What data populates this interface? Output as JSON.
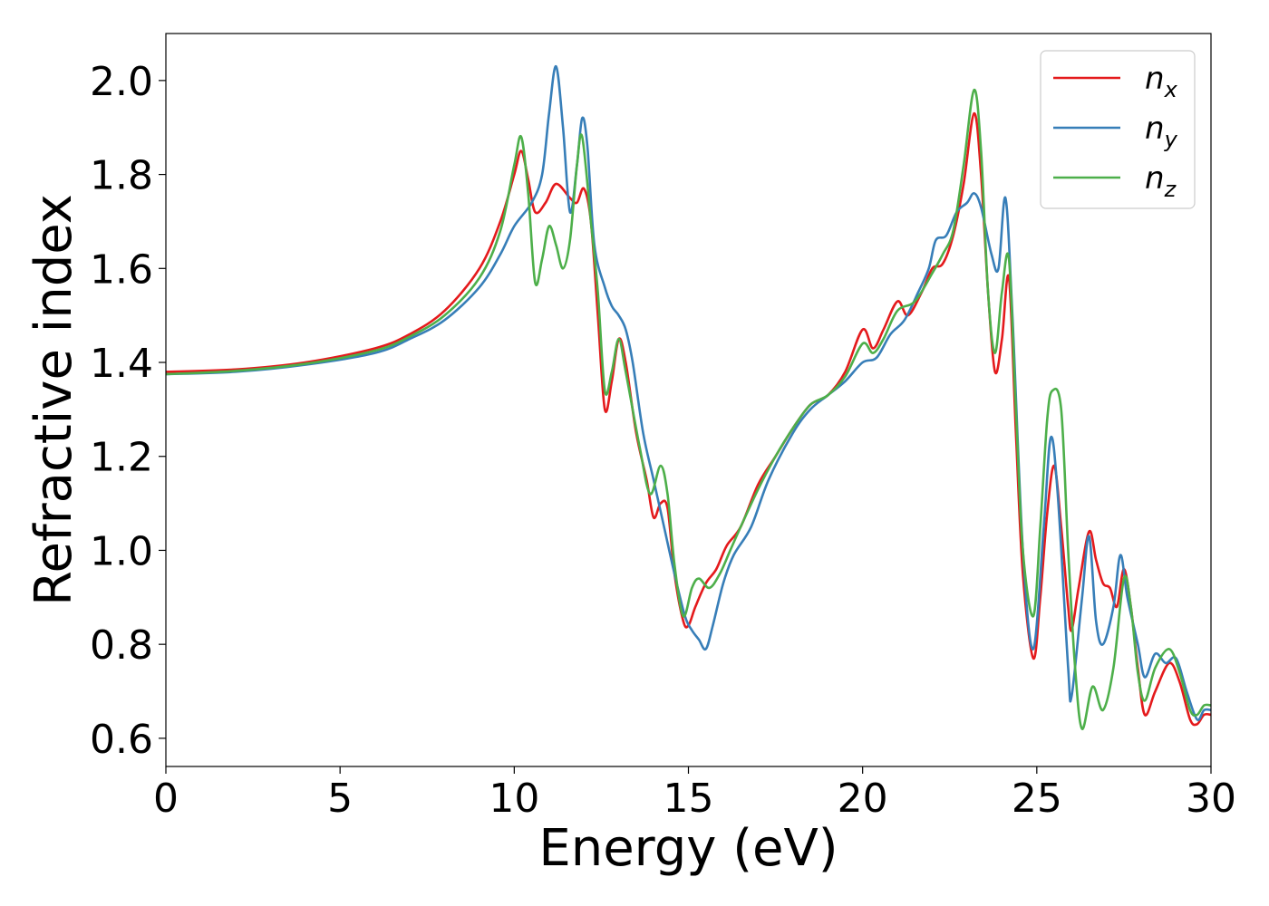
{
  "chart_data": {
    "type": "line",
    "title": "",
    "xlabel": "Energy (eV)",
    "ylabel": "Refractive index",
    "xlim": [
      0,
      30
    ],
    "ylim": [
      0.54,
      2.1
    ],
    "xticks": [
      0,
      5,
      10,
      15,
      20,
      25,
      30
    ],
    "xtick_labels": [
      "0",
      "5",
      "10",
      "15",
      "20",
      "25",
      "30"
    ],
    "yticks": [
      0.6,
      0.8,
      1.0,
      1.2,
      1.4,
      1.6,
      1.8,
      2.0
    ],
    "ytick_labels": [
      "0.6",
      "0.8",
      "1.0",
      "1.2",
      "1.4",
      "1.6",
      "1.8",
      "2.0"
    ],
    "grid": false,
    "legend_position": "top-right",
    "series": [
      {
        "name": "n_x",
        "label_main": "n",
        "label_sub": "x",
        "color": "#e41a1c",
        "points": [
          [
            0,
            1.38
          ],
          [
            2,
            1.385
          ],
          [
            4,
            1.4
          ],
          [
            6,
            1.43
          ],
          [
            7,
            1.46
          ],
          [
            8,
            1.51
          ],
          [
            9,
            1.6
          ],
          [
            9.6,
            1.7
          ],
          [
            10,
            1.8
          ],
          [
            10.2,
            1.85
          ],
          [
            10.4,
            1.79
          ],
          [
            10.6,
            1.72
          ],
          [
            10.9,
            1.74
          ],
          [
            11.2,
            1.78
          ],
          [
            11.6,
            1.75
          ],
          [
            11.8,
            1.74
          ],
          [
            12.0,
            1.77
          ],
          [
            12.2,
            1.7
          ],
          [
            12.4,
            1.5
          ],
          [
            12.6,
            1.3
          ],
          [
            12.8,
            1.36
          ],
          [
            13.0,
            1.45
          ],
          [
            13.2,
            1.4
          ],
          [
            13.5,
            1.25
          ],
          [
            13.8,
            1.15
          ],
          [
            14.0,
            1.07
          ],
          [
            14.2,
            1.1
          ],
          [
            14.4,
            1.09
          ],
          [
            14.6,
            0.95
          ],
          [
            14.85,
            0.85
          ],
          [
            15.0,
            0.84
          ],
          [
            15.2,
            0.88
          ],
          [
            15.5,
            0.93
          ],
          [
            15.8,
            0.96
          ],
          [
            16.1,
            1.01
          ],
          [
            16.5,
            1.05
          ],
          [
            17.0,
            1.14
          ],
          [
            17.5,
            1.2
          ],
          [
            18.0,
            1.26
          ],
          [
            18.5,
            1.31
          ],
          [
            19.0,
            1.33
          ],
          [
            19.5,
            1.38
          ],
          [
            20.0,
            1.47
          ],
          [
            20.3,
            1.43
          ],
          [
            20.6,
            1.47
          ],
          [
            21.0,
            1.53
          ],
          [
            21.3,
            1.5
          ],
          [
            21.7,
            1.55
          ],
          [
            22.0,
            1.6
          ],
          [
            22.3,
            1.61
          ],
          [
            22.6,
            1.67
          ],
          [
            22.9,
            1.78
          ],
          [
            23.2,
            1.93
          ],
          [
            23.4,
            1.8
          ],
          [
            23.6,
            1.55
          ],
          [
            23.8,
            1.38
          ],
          [
            24.0,
            1.45
          ],
          [
            24.2,
            1.58
          ],
          [
            24.4,
            1.25
          ],
          [
            24.6,
            0.95
          ],
          [
            24.9,
            0.77
          ],
          [
            25.1,
            0.9
          ],
          [
            25.3,
            1.08
          ],
          [
            25.5,
            1.18
          ],
          [
            25.7,
            1.05
          ],
          [
            25.9,
            0.88
          ],
          [
            26.0,
            0.83
          ],
          [
            26.2,
            0.92
          ],
          [
            26.5,
            1.04
          ],
          [
            26.7,
            0.98
          ],
          [
            26.9,
            0.93
          ],
          [
            27.1,
            0.92
          ],
          [
            27.3,
            0.88
          ],
          [
            27.5,
            0.96
          ],
          [
            27.7,
            0.88
          ],
          [
            27.9,
            0.75
          ],
          [
            28.1,
            0.65
          ],
          [
            28.4,
            0.7
          ],
          [
            28.8,
            0.76
          ],
          [
            29.1,
            0.72
          ],
          [
            29.4,
            0.64
          ],
          [
            29.6,
            0.63
          ],
          [
            29.8,
            0.65
          ],
          [
            30.0,
            0.65
          ]
        ]
      },
      {
        "name": "n_y",
        "label_main": "n",
        "label_sub": "y",
        "color": "#377eb8",
        "points": [
          [
            0,
            1.375
          ],
          [
            2,
            1.38
          ],
          [
            4,
            1.395
          ],
          [
            6,
            1.42
          ],
          [
            7,
            1.45
          ],
          [
            8,
            1.49
          ],
          [
            9,
            1.56
          ],
          [
            9.6,
            1.63
          ],
          [
            10,
            1.69
          ],
          [
            10.5,
            1.74
          ],
          [
            10.8,
            1.8
          ],
          [
            11.0,
            1.93
          ],
          [
            11.2,
            2.03
          ],
          [
            11.4,
            1.9
          ],
          [
            11.6,
            1.72
          ],
          [
            11.8,
            1.82
          ],
          [
            11.95,
            1.92
          ],
          [
            12.1,
            1.86
          ],
          [
            12.3,
            1.65
          ],
          [
            12.6,
            1.56
          ],
          [
            12.8,
            1.52
          ],
          [
            13.0,
            1.5
          ],
          [
            13.2,
            1.47
          ],
          [
            13.4,
            1.4
          ],
          [
            13.7,
            1.25
          ],
          [
            14.0,
            1.15
          ],
          [
            14.3,
            1.05
          ],
          [
            14.6,
            0.95
          ],
          [
            14.9,
            0.86
          ],
          [
            15.1,
            0.83
          ],
          [
            15.3,
            0.81
          ],
          [
            15.5,
            0.79
          ],
          [
            15.7,
            0.84
          ],
          [
            16.0,
            0.93
          ],
          [
            16.3,
            0.99
          ],
          [
            16.8,
            1.05
          ],
          [
            17.3,
            1.15
          ],
          [
            18.0,
            1.25
          ],
          [
            18.5,
            1.3
          ],
          [
            19.0,
            1.33
          ],
          [
            19.5,
            1.36
          ],
          [
            20.0,
            1.4
          ],
          [
            20.4,
            1.41
          ],
          [
            20.8,
            1.46
          ],
          [
            21.2,
            1.49
          ],
          [
            21.6,
            1.55
          ],
          [
            21.9,
            1.6
          ],
          [
            22.1,
            1.66
          ],
          [
            22.4,
            1.67
          ],
          [
            22.7,
            1.72
          ],
          [
            23.0,
            1.74
          ],
          [
            23.2,
            1.76
          ],
          [
            23.4,
            1.73
          ],
          [
            23.7,
            1.63
          ],
          [
            23.9,
            1.6
          ],
          [
            24.1,
            1.75
          ],
          [
            24.3,
            1.5
          ],
          [
            24.6,
            1.0
          ],
          [
            24.9,
            0.79
          ],
          [
            25.2,
            1.05
          ],
          [
            25.4,
            1.24
          ],
          [
            25.6,
            1.12
          ],
          [
            25.9,
            0.75
          ],
          [
            26.0,
            0.69
          ],
          [
            26.3,
            0.9
          ],
          [
            26.5,
            1.03
          ],
          [
            26.7,
            0.85
          ],
          [
            26.9,
            0.8
          ],
          [
            27.2,
            0.88
          ],
          [
            27.4,
            0.99
          ],
          [
            27.6,
            0.9
          ],
          [
            27.9,
            0.8
          ],
          [
            28.1,
            0.73
          ],
          [
            28.4,
            0.78
          ],
          [
            28.7,
            0.76
          ],
          [
            29.0,
            0.77
          ],
          [
            29.3,
            0.7
          ],
          [
            29.6,
            0.64
          ],
          [
            29.8,
            0.66
          ],
          [
            30.0,
            0.66
          ]
        ]
      },
      {
        "name": "n_z",
        "label_main": "n",
        "label_sub": "z",
        "color": "#4daf4a",
        "points": [
          [
            0,
            1.375
          ],
          [
            2,
            1.382
          ],
          [
            4,
            1.397
          ],
          [
            6,
            1.425
          ],
          [
            7,
            1.455
          ],
          [
            8,
            1.5
          ],
          [
            9,
            1.58
          ],
          [
            9.6,
            1.68
          ],
          [
            10,
            1.82
          ],
          [
            10.2,
            1.88
          ],
          [
            10.4,
            1.76
          ],
          [
            10.6,
            1.57
          ],
          [
            10.8,
            1.62
          ],
          [
            11.0,
            1.69
          ],
          [
            11.2,
            1.65
          ],
          [
            11.4,
            1.6
          ],
          [
            11.6,
            1.66
          ],
          [
            11.8,
            1.82
          ],
          [
            11.95,
            1.88
          ],
          [
            12.2,
            1.7
          ],
          [
            12.4,
            1.55
          ],
          [
            12.6,
            1.34
          ],
          [
            12.8,
            1.38
          ],
          [
            13.0,
            1.45
          ],
          [
            13.2,
            1.38
          ],
          [
            13.6,
            1.22
          ],
          [
            13.9,
            1.12
          ],
          [
            14.2,
            1.18
          ],
          [
            14.4,
            1.12
          ],
          [
            14.6,
            0.97
          ],
          [
            14.85,
            0.86
          ],
          [
            15.1,
            0.92
          ],
          [
            15.3,
            0.94
          ],
          [
            15.6,
            0.92
          ],
          [
            15.9,
            0.95
          ],
          [
            16.2,
            1.0
          ],
          [
            16.5,
            1.05
          ],
          [
            17.0,
            1.13
          ],
          [
            17.5,
            1.2
          ],
          [
            18.0,
            1.26
          ],
          [
            18.5,
            1.31
          ],
          [
            19.0,
            1.33
          ],
          [
            19.5,
            1.37
          ],
          [
            20.0,
            1.44
          ],
          [
            20.3,
            1.42
          ],
          [
            20.6,
            1.45
          ],
          [
            21.0,
            1.51
          ],
          [
            21.5,
            1.53
          ],
          [
            22.0,
            1.59
          ],
          [
            22.3,
            1.63
          ],
          [
            22.6,
            1.68
          ],
          [
            22.9,
            1.82
          ],
          [
            23.2,
            1.98
          ],
          [
            23.4,
            1.85
          ],
          [
            23.6,
            1.55
          ],
          [
            23.8,
            1.42
          ],
          [
            24.0,
            1.55
          ],
          [
            24.2,
            1.62
          ],
          [
            24.4,
            1.3
          ],
          [
            24.6,
            1.0
          ],
          [
            24.9,
            0.86
          ],
          [
            25.1,
            1.05
          ],
          [
            25.3,
            1.28
          ],
          [
            25.45,
            1.34
          ],
          [
            25.7,
            1.3
          ],
          [
            25.9,
            1.0
          ],
          [
            26.1,
            0.75
          ],
          [
            26.3,
            0.62
          ],
          [
            26.6,
            0.71
          ],
          [
            26.9,
            0.66
          ],
          [
            27.2,
            0.75
          ],
          [
            27.5,
            0.94
          ],
          [
            27.7,
            0.88
          ],
          [
            27.9,
            0.74
          ],
          [
            28.1,
            0.68
          ],
          [
            28.4,
            0.75
          ],
          [
            28.8,
            0.79
          ],
          [
            29.1,
            0.74
          ],
          [
            29.4,
            0.66
          ],
          [
            29.6,
            0.65
          ],
          [
            29.8,
            0.67
          ],
          [
            30.0,
            0.67
          ]
        ]
      }
    ]
  }
}
